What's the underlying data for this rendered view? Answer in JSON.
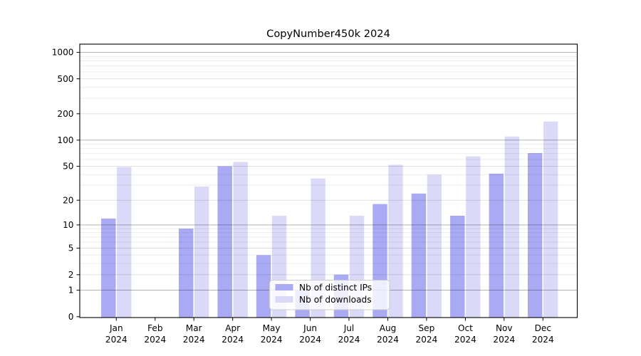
{
  "chart_data": {
    "type": "bar",
    "title": "CopyNumber450k 2024",
    "categories": [
      "Jan",
      "Feb",
      "Mar",
      "Apr",
      "May",
      "Jun",
      "Jul",
      "Aug",
      "Sep",
      "Oct",
      "Nov",
      "Dec"
    ],
    "year_label": "2024",
    "series": [
      {
        "name": "Nb of distinct IPs",
        "color": "#a9a9f4",
        "values": [
          12,
          0,
          9,
          50,
          4,
          1,
          2,
          18,
          24,
          13,
          41,
          71
        ]
      },
      {
        "name": "Nb of downloads",
        "color": "#dadaf8",
        "values": [
          49,
          0,
          29,
          56,
          13,
          36,
          13,
          52,
          40,
          65,
          110,
          163
        ]
      }
    ],
    "yscale": "log(1+x)",
    "yticks": [
      0,
      1,
      2,
      5,
      10,
      20,
      50,
      100,
      200,
      500,
      1000
    ],
    "ytick_major": [
      1,
      10,
      100,
      1000
    ],
    "ylim": [
      0,
      1240
    ],
    "grid": true,
    "legend_position": "lower center",
    "axis_color": "#000000",
    "background_color": "#ffffff"
  }
}
